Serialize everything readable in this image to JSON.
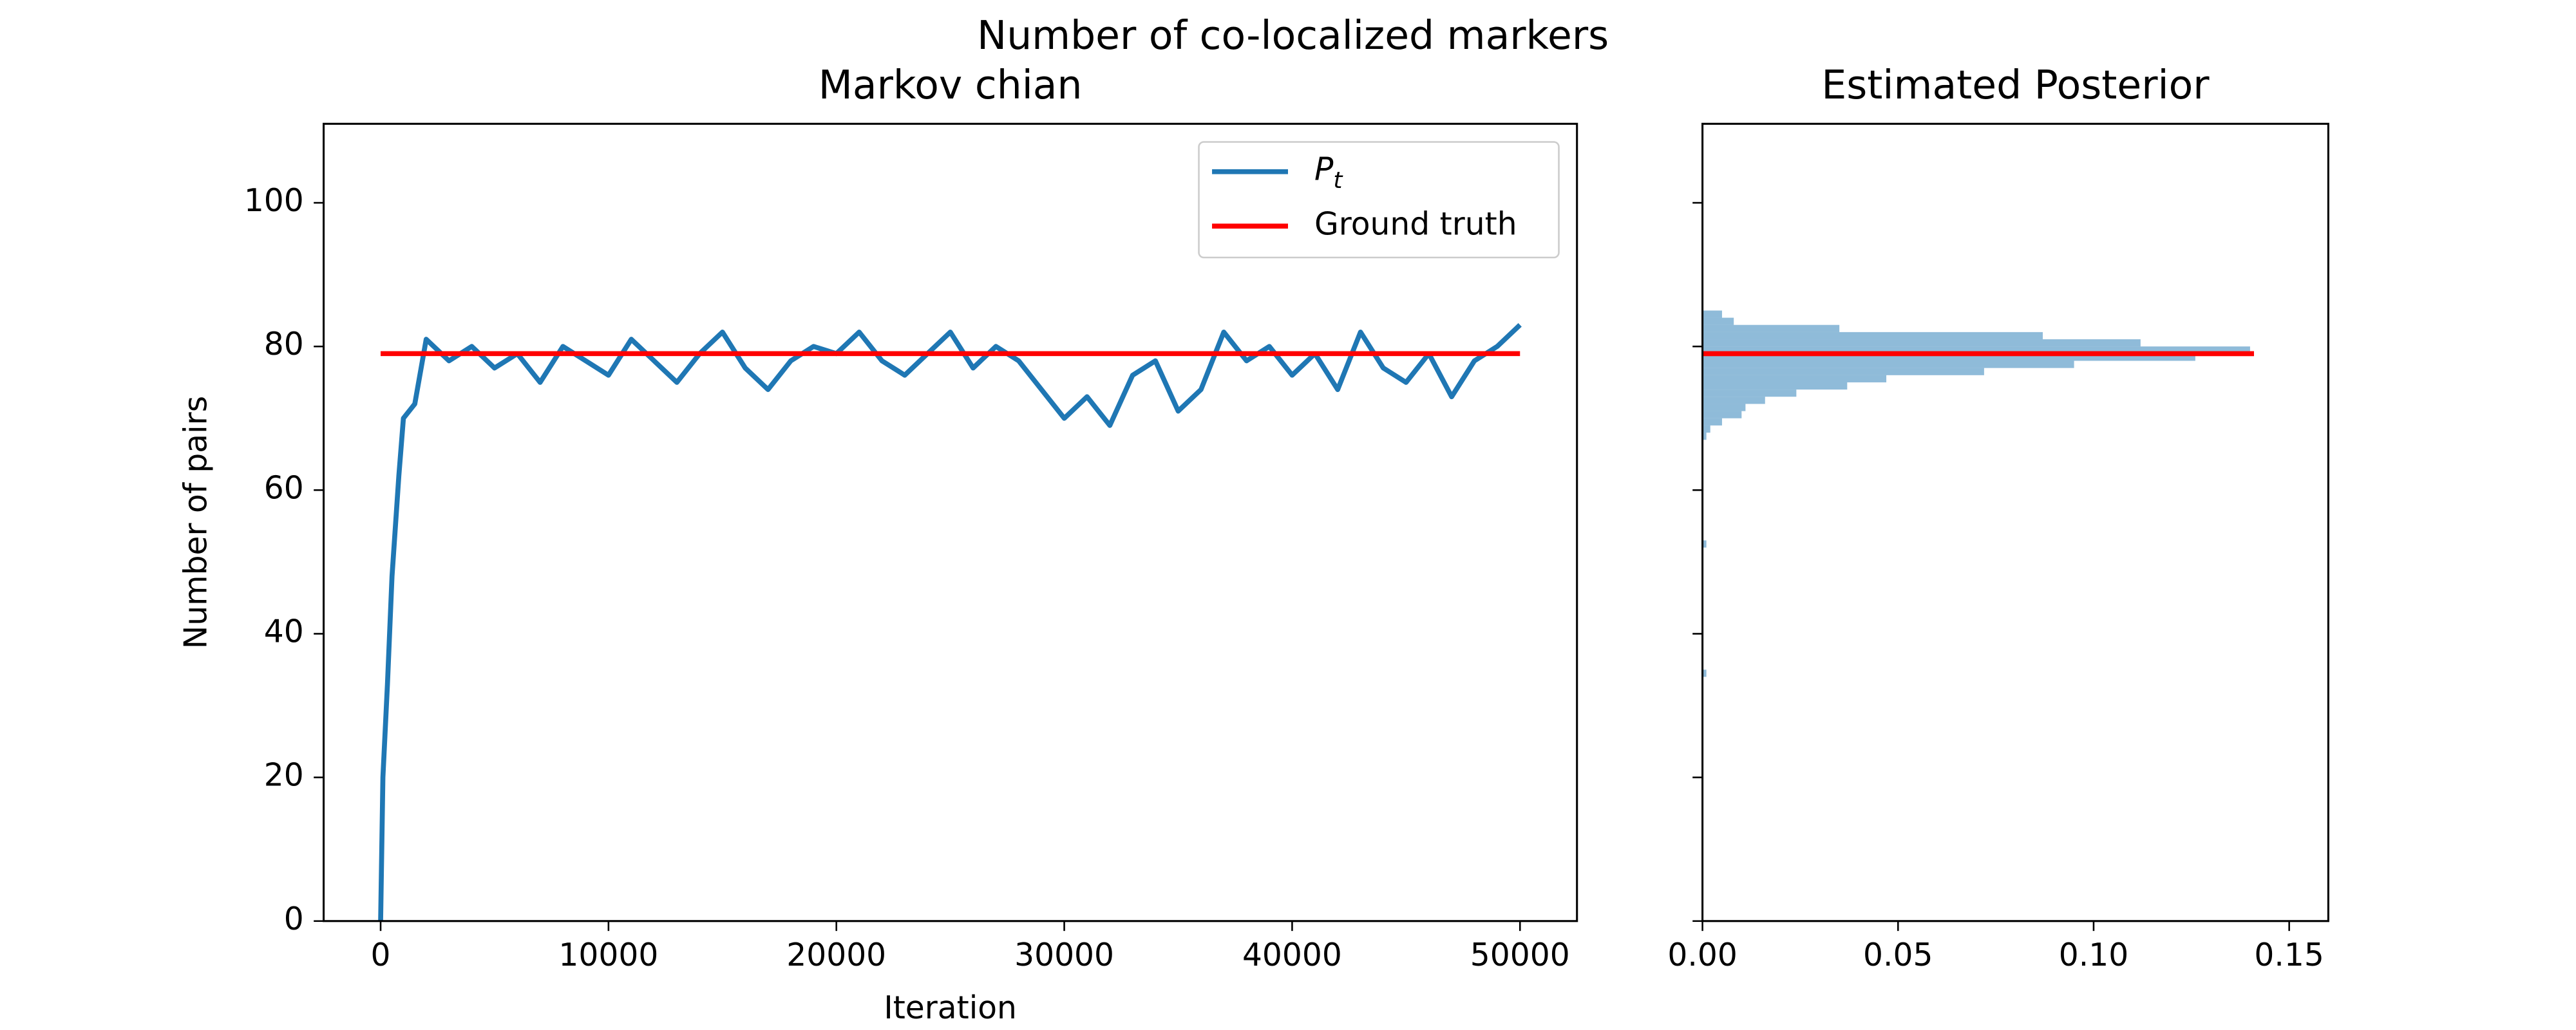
{
  "title": "Number of co-localized markers",
  "chart_data": [
    {
      "type": "line",
      "title": "Markov chian",
      "xlabel": "Iteration",
      "ylabel": "Number of pairs",
      "series": [
        {
          "name": "P_t",
          "color": "#1f77b4",
          "x": [
            0,
            100,
            300,
            500,
            800,
            1000,
            1500,
            2000,
            3000,
            4000,
            5000,
            6000,
            7000,
            8000,
            9000,
            10000,
            11000,
            12000,
            13000,
            14000,
            15000,
            16000,
            17000,
            18000,
            19000,
            20000,
            21000,
            22000,
            23000,
            24000,
            25000,
            26000,
            27000,
            28000,
            29000,
            30000,
            31000,
            32000,
            33000,
            34000,
            35000,
            36000,
            37000,
            38000,
            39000,
            40000,
            41000,
            42000,
            43000,
            44000,
            45000,
            46000,
            47000,
            48000,
            49000,
            50000
          ],
          "values": [
            0,
            20,
            33,
            48,
            62,
            70,
            72,
            81,
            78,
            80,
            77,
            79,
            75,
            80,
            78,
            76,
            81,
            78,
            75,
            79,
            82,
            77,
            74,
            78,
            80,
            79,
            82,
            78,
            76,
            79,
            82,
            77,
            80,
            78,
            74,
            70,
            73,
            69,
            76,
            78,
            71,
            74,
            82,
            78,
            80,
            76,
            79,
            74,
            82,
            77,
            75,
            79,
            73,
            78,
            80,
            83
          ]
        },
        {
          "name": "Ground truth",
          "color": "#ff0000",
          "x": [
            0,
            50000
          ],
          "values": [
            79,
            79
          ]
        }
      ],
      "xlim": [
        -2500,
        52500
      ],
      "xticks": [
        0,
        10000,
        20000,
        30000,
        40000,
        50000
      ],
      "ylim": [
        0,
        111
      ],
      "yticks": [
        0,
        20,
        40,
        60,
        80,
        100
      ],
      "legend": "upper right"
    },
    {
      "type": "histogram",
      "title": "Estimated Posterior",
      "orientation": "horizontal",
      "color": "#1f77b4",
      "alpha": 0.5,
      "bins": [
        33,
        34,
        35,
        36,
        37,
        38,
        39,
        40,
        41,
        42,
        43,
        44,
        45,
        46,
        47,
        48,
        49,
        50,
        51,
        52,
        53,
        54,
        55,
        56,
        57,
        58,
        59,
        60,
        61,
        62,
        63,
        64,
        65,
        66,
        67,
        68,
        69,
        70,
        71,
        72,
        73,
        74,
        75,
        76,
        77,
        78,
        79,
        80,
        81,
        82,
        83,
        84,
        85
      ],
      "counts": [
        0,
        0.001,
        0,
        0,
        0,
        0,
        0,
        0,
        0,
        0,
        0,
        0,
        0,
        0,
        0,
        0,
        0,
        0,
        0,
        0.001,
        0,
        0,
        0,
        0,
        0,
        0,
        0,
        0,
        0,
        0,
        0,
        0,
        0,
        0,
        0.001,
        0.002,
        0.005,
        0.01,
        0.011,
        0.016,
        0.024,
        0.037,
        0.047,
        0.072,
        0.095,
        0.126,
        0.14,
        0.112,
        0.087,
        0.035,
        0.008,
        0.005
      ],
      "hline": {
        "value": 79,
        "xmax": 0.141,
        "color": "#ff0000"
      },
      "xlim": [
        0,
        0.16
      ],
      "xticks": [
        {
          "value": 0,
          "label": "0.00"
        },
        {
          "value": 0.05,
          "label": "0.05"
        },
        {
          "value": 0.1,
          "label": "0.10"
        },
        {
          "value": 0.15,
          "label": "0.15"
        }
      ],
      "ylim": [
        0,
        111
      ],
      "yticks": [
        0,
        20,
        40,
        60,
        80,
        100
      ]
    }
  ]
}
